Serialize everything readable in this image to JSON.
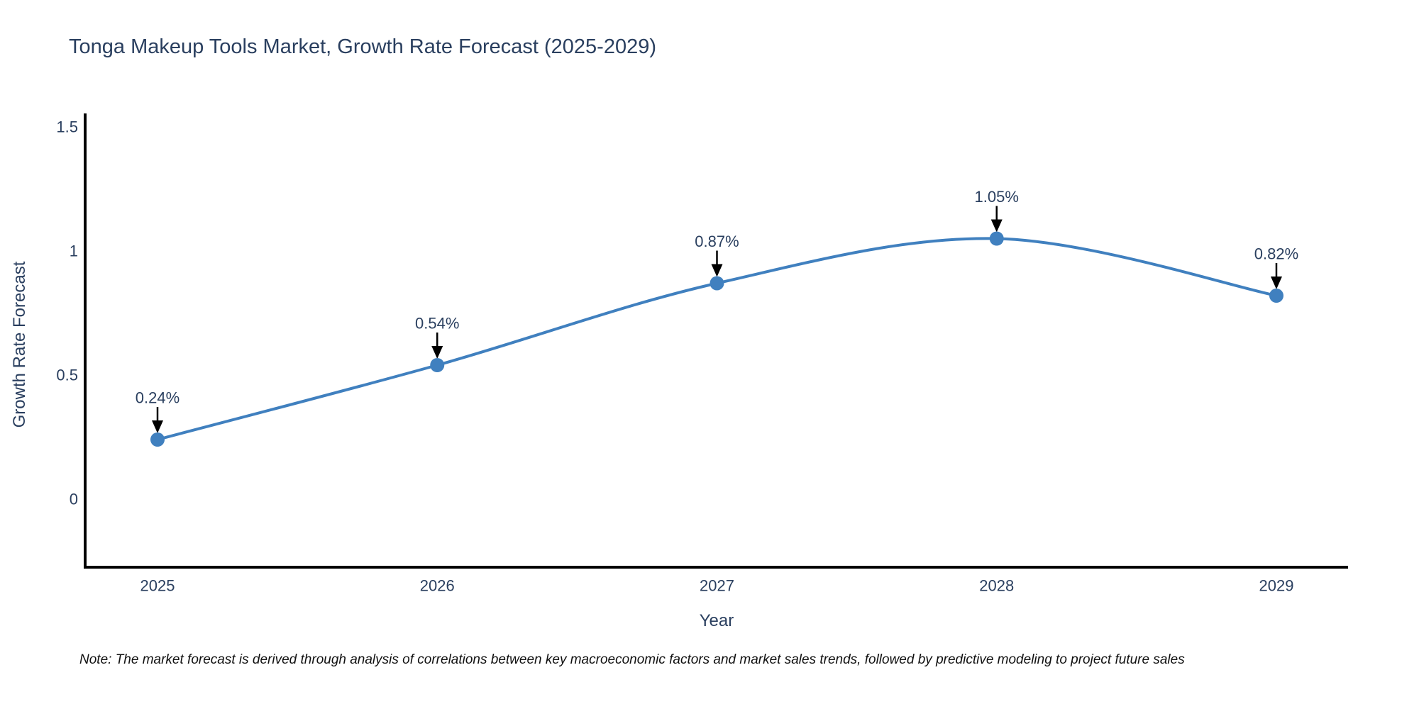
{
  "title": "Tonga Makeup Tools Market, Growth Rate Forecast (2025-2029)",
  "note": "Note: The market forecast is derived through analysis of correlations between key macroeconomic factors and market sales trends, followed by predictive modeling to project future sales",
  "chart_data": {
    "type": "line",
    "title": "Tonga Makeup Tools Market, Growth Rate Forecast (2025-2029)",
    "xlabel": "Year",
    "ylabel": "Growth Rate Forecast",
    "x": [
      2025,
      2026,
      2027,
      2028,
      2029
    ],
    "y": [
      0.24,
      0.54,
      0.87,
      1.05,
      0.82
    ],
    "point_labels": [
      "0.24%",
      "0.54%",
      "0.87%",
      "1.05%",
      "0.82%"
    ],
    "xtick_labels": [
      "2025",
      "2026",
      "2027",
      "2028",
      "2029"
    ],
    "yticks": [
      0,
      0.5,
      1,
      1.5
    ],
    "ytick_labels": [
      "0",
      "0.5",
      "1",
      "1.5"
    ],
    "ylim": [
      -0.28,
      1.55
    ],
    "grid": false,
    "legend": "none",
    "line_shape": "spline",
    "line_color": "#4080bf",
    "marker_color": "#4080bf",
    "arrow_color": "#000000",
    "axis_color": "#000000",
    "text_color": "#2a3f5f"
  }
}
